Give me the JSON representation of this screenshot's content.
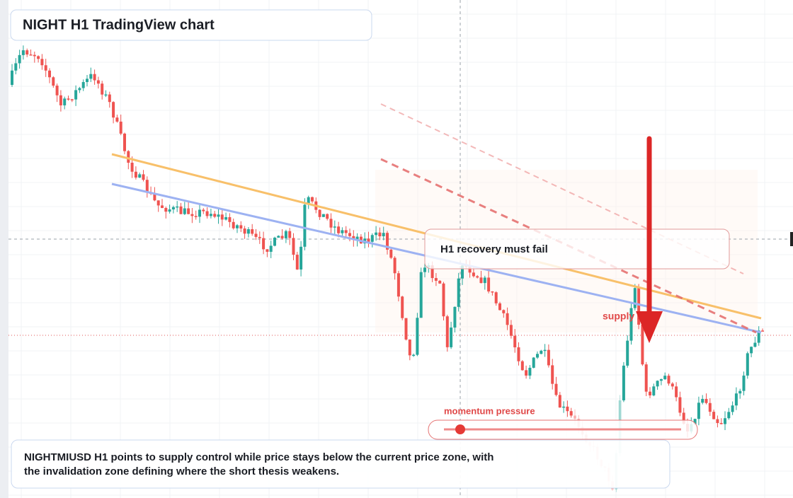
{
  "header": {
    "title": "NIGHT H1 TradingView chart"
  },
  "callout": {
    "text": "H1 recovery must fail"
  },
  "zone": {
    "label": "supply zone"
  },
  "indicator": {
    "label": "momentum pressure"
  },
  "description": {
    "lines": [
      "NIGHTMIUSD H1 points to supply control while price stays below the current price zone, with",
      "the invalidation zone defining where the short thesis weakens."
    ]
  }
}
